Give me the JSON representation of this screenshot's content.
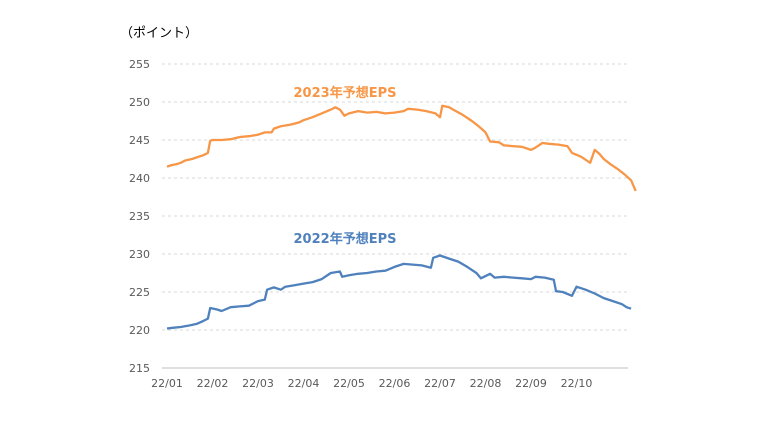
{
  "chart_data": {
    "type": "line",
    "unit_label": "（ポイント）",
    "ylim": [
      215,
      255
    ],
    "y_ticks": [
      "255",
      "250",
      "245",
      "240",
      "235",
      "230",
      "225",
      "220",
      "215"
    ],
    "x_tick_labels": [
      "22/01",
      "22/02",
      "22/03",
      "22/04",
      "22/05",
      "22/06",
      "22/07",
      "22/08",
      "22/09",
      "22/10"
    ],
    "grid": true,
    "series": [
      {
        "name": "2023年予想EPS",
        "color": "#F79646",
        "points": [
          [
            0,
            241.5
          ],
          [
            0.1,
            241.7
          ],
          [
            0.2,
            241.8
          ],
          [
            0.3,
            242.0
          ],
          [
            0.4,
            242.3
          ],
          [
            0.55,
            242.5
          ],
          [
            0.7,
            242.8
          ],
          [
            0.8,
            243.0
          ],
          [
            0.9,
            243.3
          ],
          [
            0.95,
            244.9
          ],
          [
            1.0,
            245.0
          ],
          [
            1.2,
            245.0
          ],
          [
            1.4,
            245.1
          ],
          [
            1.6,
            245.4
          ],
          [
            1.8,
            245.5
          ],
          [
            2.0,
            245.7
          ],
          [
            2.15,
            246.0
          ],
          [
            2.3,
            246.0
          ],
          [
            2.35,
            246.5
          ],
          [
            2.5,
            246.8
          ],
          [
            2.7,
            247.0
          ],
          [
            2.9,
            247.3
          ],
          [
            3.0,
            247.6
          ],
          [
            3.2,
            248.0
          ],
          [
            3.4,
            248.5
          ],
          [
            3.6,
            249.0
          ],
          [
            3.7,
            249.3
          ],
          [
            3.8,
            249.0
          ],
          [
            3.9,
            248.2
          ],
          [
            4.0,
            248.5
          ],
          [
            4.2,
            248.8
          ],
          [
            4.4,
            248.6
          ],
          [
            4.6,
            248.7
          ],
          [
            4.8,
            248.5
          ],
          [
            5.0,
            248.6
          ],
          [
            5.2,
            248.8
          ],
          [
            5.3,
            249.1
          ],
          [
            5.5,
            249.0
          ],
          [
            5.7,
            248.8
          ],
          [
            5.9,
            248.5
          ],
          [
            6.0,
            248.0
          ],
          [
            6.05,
            249.5
          ],
          [
            6.2,
            249.3
          ],
          [
            6.35,
            248.8
          ],
          [
            6.5,
            248.3
          ],
          [
            6.7,
            247.5
          ],
          [
            6.85,
            246.8
          ],
          [
            7.0,
            246.0
          ],
          [
            7.1,
            244.8
          ],
          [
            7.3,
            244.7
          ],
          [
            7.4,
            244.3
          ],
          [
            7.6,
            244.2
          ],
          [
            7.8,
            244.1
          ],
          [
            8.0,
            243.7
          ],
          [
            8.1,
            244.0
          ],
          [
            8.25,
            244.6
          ],
          [
            8.4,
            244.5
          ],
          [
            8.6,
            244.4
          ],
          [
            8.8,
            244.2
          ],
          [
            8.9,
            243.3
          ],
          [
            9.1,
            242.8
          ],
          [
            9.3,
            242.0
          ],
          [
            9.4,
            243.7
          ],
          [
            9.5,
            243.2
          ],
          [
            9.6,
            242.5
          ],
          [
            9.75,
            241.8
          ],
          [
            9.9,
            241.2
          ],
          [
            10.05,
            240.5
          ],
          [
            10.2,
            239.7
          ],
          [
            10.3,
            238.3
          ]
        ]
      },
      {
        "name": "2022年予想EPS",
        "color": "#4F81BD",
        "points": [
          [
            0,
            220.2
          ],
          [
            0.15,
            220.3
          ],
          [
            0.3,
            220.4
          ],
          [
            0.5,
            220.6
          ],
          [
            0.65,
            220.8
          ],
          [
            0.8,
            221.2
          ],
          [
            0.9,
            221.5
          ],
          [
            0.95,
            222.9
          ],
          [
            1.1,
            222.7
          ],
          [
            1.2,
            222.5
          ],
          [
            1.4,
            223.0
          ],
          [
            1.6,
            223.1
          ],
          [
            1.8,
            223.2
          ],
          [
            2.0,
            223.8
          ],
          [
            2.15,
            224.0
          ],
          [
            2.2,
            225.3
          ],
          [
            2.35,
            225.6
          ],
          [
            2.5,
            225.3
          ],
          [
            2.6,
            225.7
          ],
          [
            2.8,
            225.9
          ],
          [
            3.0,
            226.1
          ],
          [
            3.2,
            226.3
          ],
          [
            3.4,
            226.7
          ],
          [
            3.6,
            227.5
          ],
          [
            3.8,
            227.7
          ],
          [
            3.85,
            227.0
          ],
          [
            4.0,
            227.2
          ],
          [
            4.2,
            227.4
          ],
          [
            4.4,
            227.5
          ],
          [
            4.6,
            227.7
          ],
          [
            4.8,
            227.8
          ],
          [
            5.0,
            228.3
          ],
          [
            5.2,
            228.7
          ],
          [
            5.4,
            228.6
          ],
          [
            5.6,
            228.5
          ],
          [
            5.8,
            228.2
          ],
          [
            5.85,
            229.5
          ],
          [
            6.0,
            229.8
          ],
          [
            6.2,
            229.4
          ],
          [
            6.4,
            229.0
          ],
          [
            6.6,
            228.3
          ],
          [
            6.8,
            227.5
          ],
          [
            6.9,
            226.8
          ],
          [
            7.1,
            227.4
          ],
          [
            7.2,
            226.9
          ],
          [
            7.4,
            227.0
          ],
          [
            7.6,
            226.9
          ],
          [
            7.8,
            226.8
          ],
          [
            8.0,
            226.7
          ],
          [
            8.1,
            227.0
          ],
          [
            8.3,
            226.9
          ],
          [
            8.5,
            226.6
          ],
          [
            8.55,
            225.1
          ],
          [
            8.7,
            225.0
          ],
          [
            8.9,
            224.5
          ],
          [
            9.0,
            225.7
          ],
          [
            9.2,
            225.3
          ],
          [
            9.4,
            224.8
          ],
          [
            9.6,
            224.2
          ],
          [
            9.8,
            223.8
          ],
          [
            10.0,
            223.4
          ],
          [
            10.1,
            223.0
          ],
          [
            10.2,
            222.8
          ]
        ]
      }
    ]
  }
}
